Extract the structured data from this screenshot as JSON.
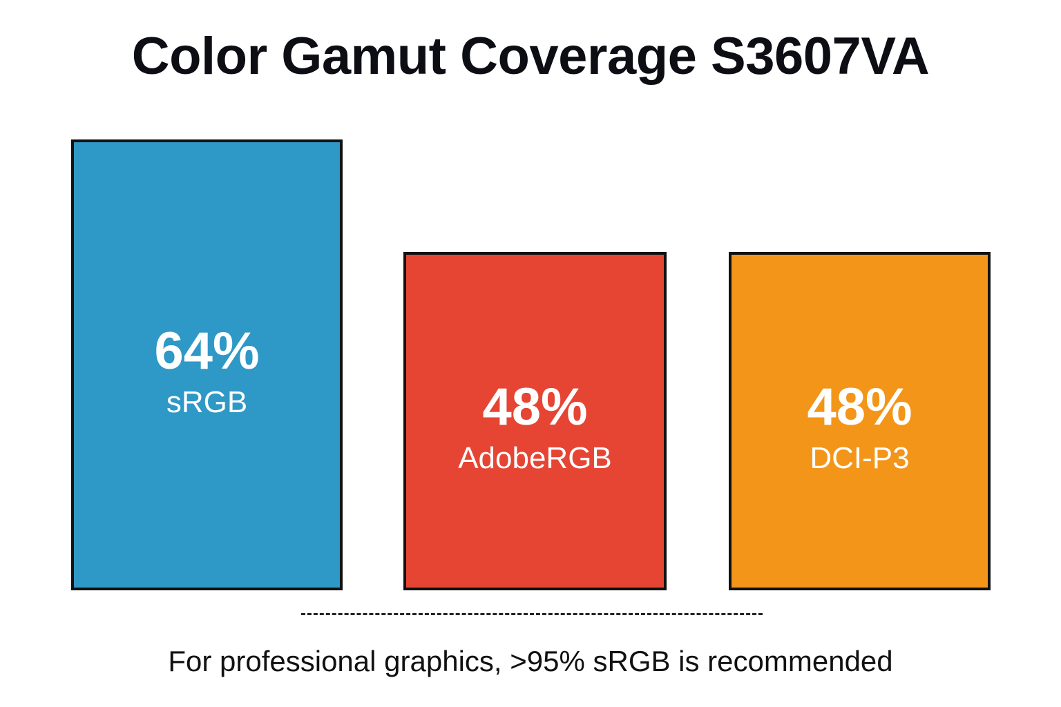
{
  "chart_data": {
    "type": "bar",
    "title": "Color Gamut Coverage S3607VA",
    "xlabel": "",
    "ylabel": "",
    "ylim": [
      0,
      100
    ],
    "categories": [
      "sRGB",
      "AdobeRGB",
      "DCI-P3"
    ],
    "values": [
      64,
      48,
      48
    ],
    "value_labels": [
      "64%",
      "48%",
      "48%"
    ],
    "colors": [
      "#2e98c6",
      "#e64534",
      "#f39518"
    ],
    "grid": false,
    "legend": "none",
    "annotation": "For professional graphics, >95% sRGB is recommended"
  }
}
